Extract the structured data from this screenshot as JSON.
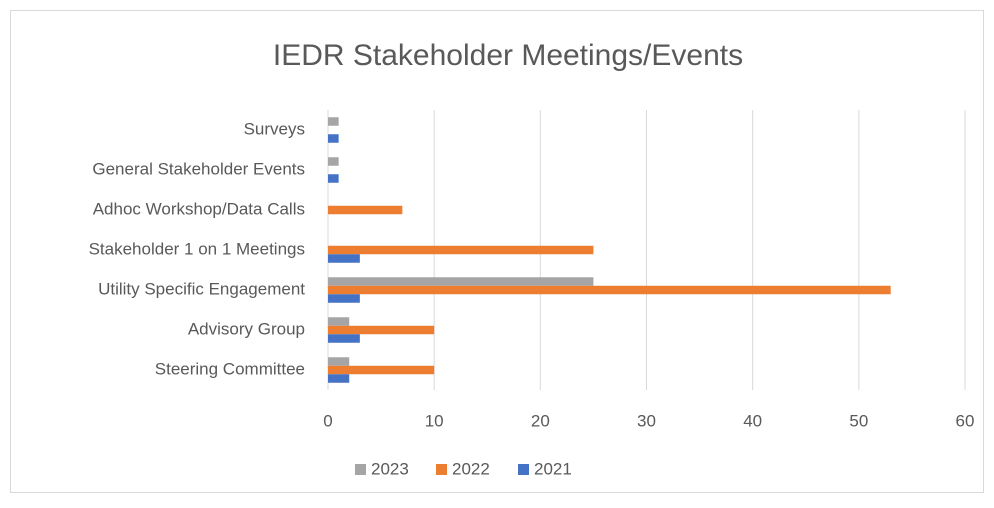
{
  "chart_data": {
    "type": "bar",
    "orientation": "horizontal",
    "title": "IEDR Stakeholder Meetings/Events",
    "categories": [
      "Surveys",
      "General Stakeholder Events",
      "Adhoc Workshop/Data Calls",
      "Stakeholder 1 on 1 Meetings",
      "Utility Specific Engagement",
      "Advisory Group",
      "Steering Committee"
    ],
    "series": [
      {
        "name": "2023",
        "color": "#a5a5a5",
        "values": [
          1,
          1,
          0,
          0,
          25,
          2,
          2
        ]
      },
      {
        "name": "2022",
        "color": "#ed7d31",
        "values": [
          0,
          0,
          7,
          25,
          53,
          10,
          10
        ]
      },
      {
        "name": "2021",
        "color": "#4472c4",
        "values": [
          1,
          1,
          0,
          3,
          3,
          3,
          2
        ]
      }
    ],
    "xlim": [
      0,
      60
    ],
    "xticks": [
      0,
      10,
      20,
      30,
      40,
      50,
      60
    ],
    "grid": true,
    "legend": "bottom"
  }
}
